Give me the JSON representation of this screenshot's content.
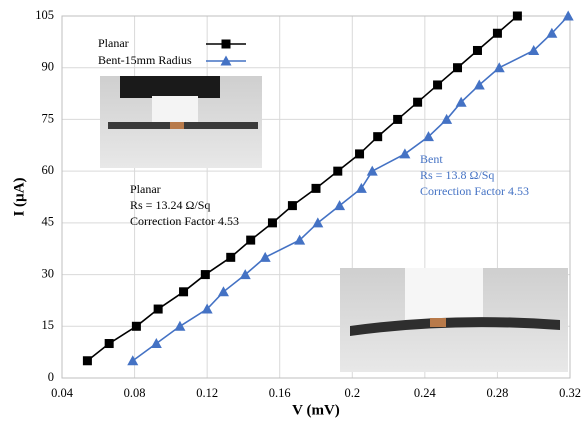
{
  "chart_data": {
    "type": "line",
    "x_label": "V (mV)",
    "y_label": "I (µA)",
    "xlim": [
      0.04,
      0.32
    ],
    "xticks": [
      0.04,
      0.08,
      0.12,
      0.16,
      0.2,
      0.24,
      0.28,
      0.32
    ],
    "ylim": [
      0,
      105
    ],
    "yticks": [
      0,
      15,
      30,
      45,
      60,
      75,
      90,
      105
    ],
    "grid": true,
    "legend": "upper left",
    "series": [
      {
        "name": "Planar",
        "color": "#000000",
        "marker": "square",
        "x": [
          0.054,
          0.066,
          0.081,
          0.093,
          0.107,
          0.119,
          0.133,
          0.144,
          0.156,
          0.167,
          0.18,
          0.192,
          0.204,
          0.214,
          0.225,
          0.236,
          0.247,
          0.258,
          0.269,
          0.28,
          0.291
        ],
        "values": [
          5,
          10,
          15,
          20,
          25,
          30,
          35,
          40,
          45,
          50,
          55,
          60,
          65,
          70,
          75,
          80,
          85,
          90,
          95,
          100,
          105
        ]
      },
      {
        "name": "Bent-15mm Radius",
        "color": "#4472c4",
        "marker": "triangle",
        "x": [
          0.079,
          0.092,
          0.105,
          0.12,
          0.129,
          0.141,
          0.152,
          0.171,
          0.181,
          0.193,
          0.205,
          0.211,
          0.229,
          0.242,
          0.252,
          0.26,
          0.27,
          0.281,
          0.3,
          0.31,
          0.319
        ],
        "values": [
          5,
          10,
          15,
          20,
          25,
          30,
          35,
          40,
          45,
          50,
          55,
          60,
          65,
          70,
          75,
          80,
          85,
          90,
          95,
          100,
          105
        ]
      }
    ],
    "annotations": [
      [
        "Planar",
        "Rs = 13.24 Ω/Sq",
        "Correction Factor 4.53"
      ],
      [
        "Bent",
        "Rs = 13.8 Ω/Sq",
        "Correction Factor 4.53"
      ]
    ]
  }
}
